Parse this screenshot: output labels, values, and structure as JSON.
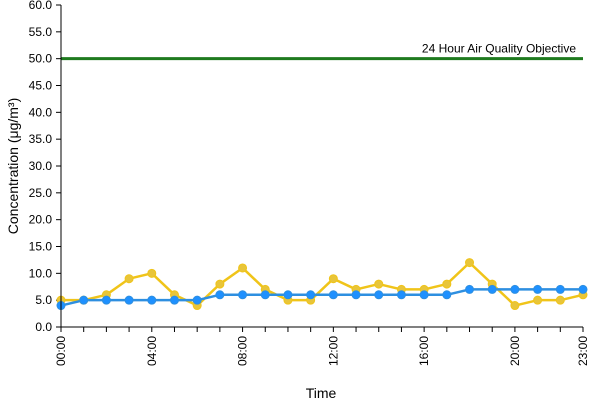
{
  "chart_data": {
    "type": "line",
    "xlabel": "Time",
    "ylabel": "Concentration (μg/m³)",
    "ylim": [
      0,
      60
    ],
    "y_ticks": [
      "0.0",
      "5.0",
      "10.0",
      "15.0",
      "20.0",
      "25.0",
      "30.0",
      "35.0",
      "40.0",
      "45.0",
      "50.0",
      "55.0",
      "60.0"
    ],
    "x": [
      0,
      1,
      2,
      3,
      4,
      5,
      6,
      7,
      8,
      9,
      10,
      11,
      12,
      13,
      14,
      15,
      16,
      17,
      18,
      19,
      20,
      21,
      22,
      23
    ],
    "x_tick_labels": [
      {
        "x": 0,
        "label": "00:00"
      },
      {
        "x": 4,
        "label": "04:00"
      },
      {
        "x": 8,
        "label": "08:00"
      },
      {
        "x": 12,
        "label": "12:00"
      },
      {
        "x": 16,
        "label": "16:00"
      },
      {
        "x": 20,
        "label": "20:00"
      },
      {
        "x": 23,
        "label": "23:00"
      }
    ],
    "grid": false,
    "series": [
      {
        "color": "#f0c419",
        "marker_color": "#e8c53a",
        "values": [
          5,
          5,
          6,
          9,
          10,
          6,
          4,
          8,
          11,
          7,
          5,
          5,
          9,
          7,
          8,
          7,
          7,
          8,
          12,
          8,
          4,
          5,
          5,
          6
        ]
      },
      {
        "color": "#2e8fe0",
        "marker_color": "#1e90ff",
        "values": [
          4,
          5,
          5,
          5,
          5,
          5,
          5,
          6,
          6,
          6,
          6,
          6,
          6,
          6,
          6,
          6,
          6,
          6,
          7,
          7,
          7,
          7,
          7,
          7
        ]
      }
    ],
    "reference_line": {
      "value": 50,
      "label": "24 Hour Air Quality Objective",
      "color": "#1e7a1e"
    }
  }
}
